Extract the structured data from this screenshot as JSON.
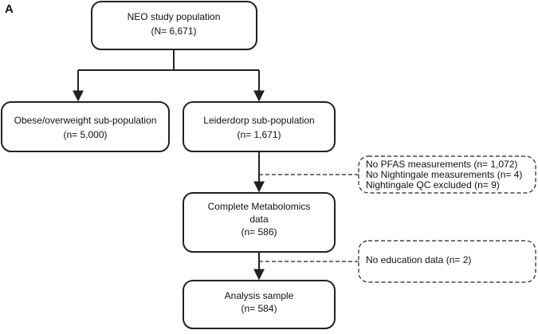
{
  "panel_label": "A",
  "nodes": [
    {
      "lines": [
        "NEO study population",
        "(N= 6,671)"
      ]
    },
    {
      "lines": [
        "Obese/overweight sub-population",
        "(n= 5,000)"
      ]
    },
    {
      "lines": [
        "Leiderdorp sub-population",
        "(n= 1,671)"
      ]
    },
    {
      "lines": [
        "Complete Metabolomics",
        "data",
        "(n= 586)"
      ]
    },
    {
      "lines": [
        "Analysis sample",
        "(n= 584)"
      ]
    }
  ],
  "exclusions": [
    {
      "lines": [
        "No PFAS measurements (n= 1,072)",
        "No Nightingale measurements (n= 4)",
        "Nightingale QC excluded (n= 9)"
      ]
    },
    {
      "lines": [
        "No education data (n= 2)"
      ]
    }
  ]
}
